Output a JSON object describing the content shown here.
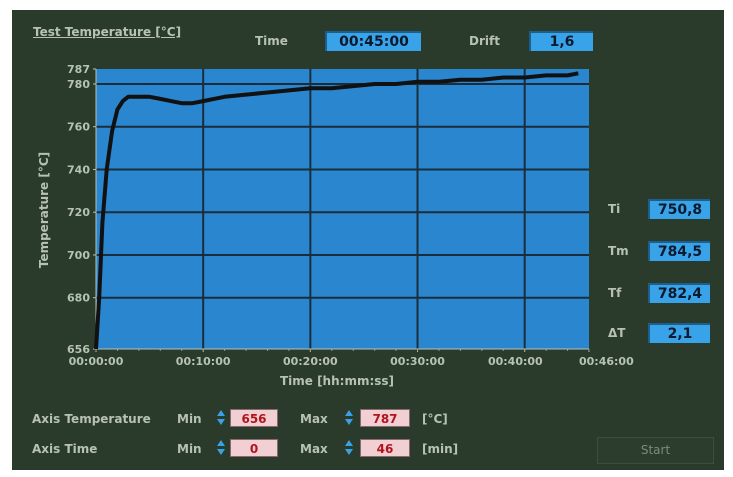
{
  "header": {
    "title": "Test Temperature [°C]",
    "time_label": "Time",
    "time_value": "00:45:00",
    "drift_label": "Drift",
    "drift_value": "1,6"
  },
  "chart_data": {
    "type": "line",
    "xlabel": "Time [hh:mm:ss]",
    "ylabel": "Temperature [°C]",
    "xlim": [
      0,
      46
    ],
    "ylim": [
      656,
      787
    ],
    "x_ticks": [
      {
        "value": 0,
        "label": "00:00:00"
      },
      {
        "value": 10,
        "label": "00:10:00"
      },
      {
        "value": 20,
        "label": "00:20:00"
      },
      {
        "value": 30,
        "label": "00:30:00"
      },
      {
        "value": 40,
        "label": "00:40:00"
      },
      {
        "value": 46,
        "label": "00:46:00"
      }
    ],
    "y_ticks": [
      656,
      680,
      700,
      720,
      740,
      760,
      780,
      787
    ],
    "grid": true,
    "series": [
      {
        "color": "#111111",
        "x": [
          0,
          0.3,
          0.6,
          1,
          1.5,
          2,
          2.5,
          3,
          4,
          5,
          6,
          7,
          8,
          9,
          10,
          11,
          12,
          14,
          16,
          18,
          20,
          22,
          24,
          26,
          28,
          30,
          32,
          34,
          36,
          38,
          40,
          42,
          44,
          45
        ],
        "y": [
          656,
          680,
          715,
          740,
          758,
          768,
          772,
          774,
          774,
          774,
          773,
          772,
          771,
          771,
          772,
          773,
          774,
          775,
          776,
          777,
          778,
          778,
          779,
          780,
          780,
          781,
          781,
          782,
          782,
          783,
          783,
          784,
          784,
          785
        ]
      }
    ]
  },
  "readouts": [
    {
      "label": "Ti",
      "value": "750,8"
    },
    {
      "label": "Tm",
      "value": "784,5"
    },
    {
      "label": "Tf",
      "value": "782,4"
    },
    {
      "label": "ΔT",
      "value": "2,1"
    }
  ],
  "axis_temperature": {
    "label": "Axis Temperature",
    "min_label": "Min",
    "min_value": "656",
    "max_label": "Max",
    "max_value": "787",
    "unit": "[°C]"
  },
  "axis_time": {
    "label": "Axis Time",
    "min_label": "Min",
    "min_value": "0",
    "max_label": "Max",
    "max_value": "46",
    "unit": "[min]"
  },
  "start_label": "Start",
  "colors": {
    "panel": "#2a3b2c",
    "plot_bg": "#2a86cf",
    "display": "#39a3ea",
    "control": "#f1cfd3"
  }
}
